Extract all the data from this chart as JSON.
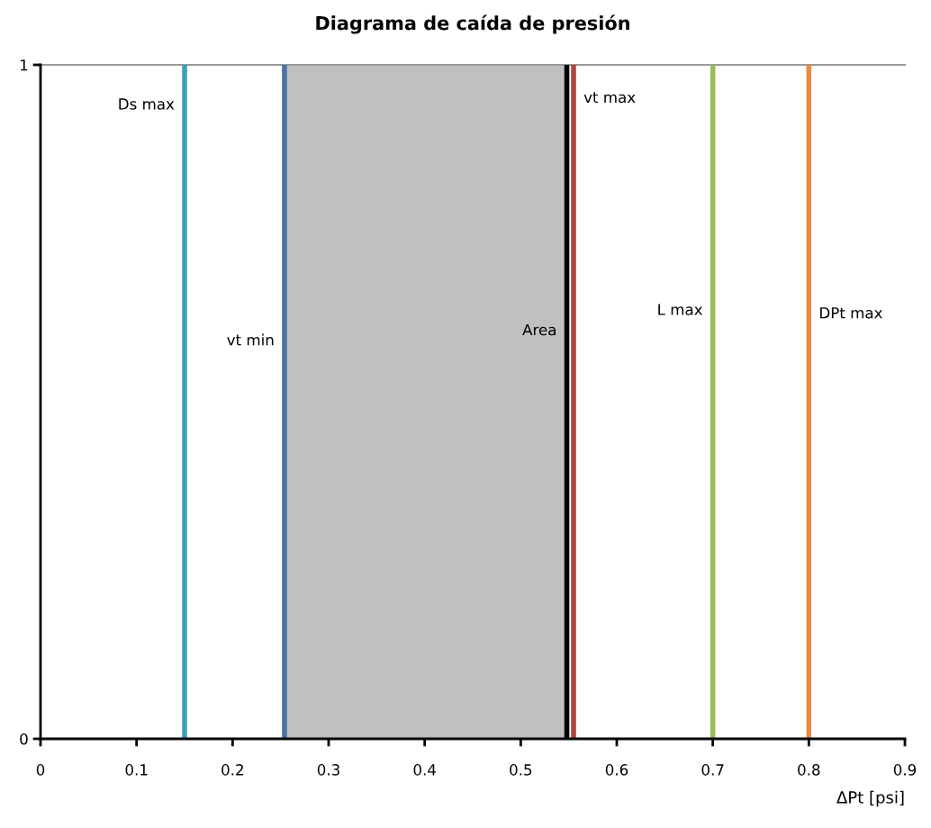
{
  "chart_data": {
    "type": "line",
    "title": "Diagrama de caída de presión",
    "xlabel": "ΔPt [psi]",
    "xlim": [
      0,
      0.9
    ],
    "xticks": [
      0,
      0.1,
      0.2,
      0.3,
      0.4,
      0.5,
      0.6,
      0.7,
      0.8,
      0.9
    ],
    "ylim": [
      0,
      1
    ],
    "yticks": [
      0,
      1
    ],
    "bands": [
      {
        "axis": "x",
        "from": 0.254,
        "to": 0.548,
        "color": "#c0c0c0"
      }
    ],
    "series": [
      {
        "name": "Ds max",
        "color": "#3f9fb8",
        "x": [
          0.15,
          0.15
        ],
        "values": [
          0,
          1
        ]
      },
      {
        "name": "vt min",
        "color": "#4a73a8",
        "x": [
          0.254,
          0.254
        ],
        "values": [
          0,
          1
        ]
      },
      {
        "name": "Area",
        "color": "#000000",
        "x": [
          0.548,
          0.548
        ],
        "values": [
          0,
          1
        ]
      },
      {
        "name": "vt max",
        "color": "#b04540",
        "x": [
          0.555,
          0.555
        ],
        "values": [
          0,
          1
        ]
      },
      {
        "name": "L max",
        "color": "#9bbb59",
        "x": [
          0.7,
          0.7
        ],
        "values": [
          0,
          1
        ]
      },
      {
        "name": "DPt max",
        "color": "#e88a45",
        "x": [
          0.8,
          0.8
        ],
        "values": [
          0,
          1
        ]
      }
    ]
  }
}
